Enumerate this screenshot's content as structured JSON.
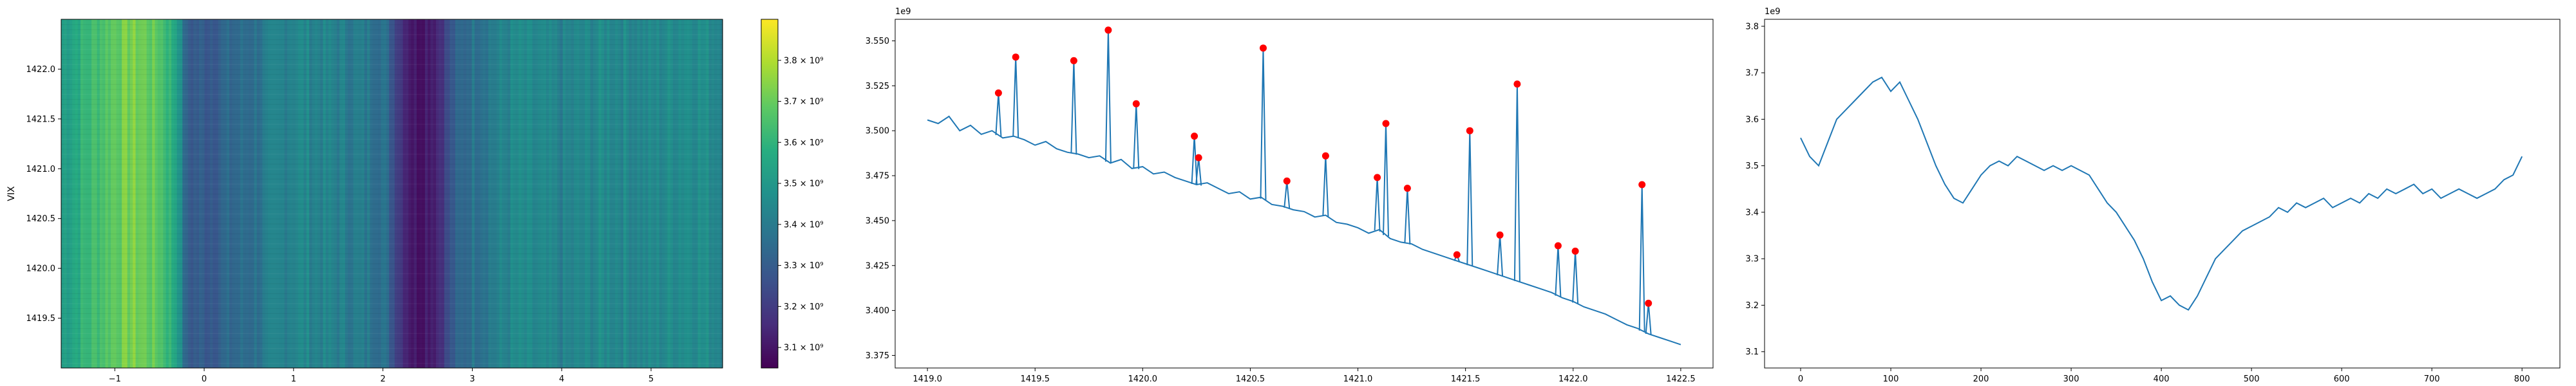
{
  "chart_data": [
    {
      "type": "heatmap",
      "ylabel": "VIX",
      "xlim": [
        -1.6,
        5.8
      ],
      "ylim": [
        1419.0,
        1422.5
      ],
      "xticks": [
        "−1",
        "0",
        "1",
        "2",
        "3",
        "4",
        "5"
      ],
      "yticks": [
        "1419.5",
        "1420.0",
        "1420.5",
        "1421.0",
        "1421.5",
        "1422.0"
      ],
      "colormap": "viridis",
      "colorbar": {
        "range": [
          3050000000.0,
          3900000000.0
        ],
        "ticks": [
          3.1,
          3.2,
          3.3,
          3.4,
          3.5,
          3.6,
          3.7,
          3.8
        ],
        "tick_labels": [
          "3.1 × 10⁹",
          "3.2 × 10⁹",
          "3.3 × 10⁹",
          "3.4 × 10⁹",
          "3.5 × 10⁹",
          "3.6 × 10⁹",
          "3.7 × 10⁹",
          "3.8 × 10⁹"
        ]
      },
      "column_profile": {
        "x": [
          -1.6,
          -1.3,
          -1.0,
          -0.8,
          -0.5,
          -0.3,
          -0.2,
          0.0,
          0.5,
          1.0,
          1.5,
          2.0,
          2.2,
          2.35,
          2.6,
          2.8,
          3.0,
          3.5,
          4.0,
          4.5,
          5.0,
          5.4,
          5.8
        ],
        "v": [
          3520000000.0,
          3620000000.0,
          3700000000.0,
          3730000000.0,
          3680000000.0,
          3550000000.0,
          3300000000.0,
          3300000000.0,
          3360000000.0,
          3450000000.0,
          3420000000.0,
          3380000000.0,
          3200000000.0,
          3100000000.0,
          3150000000.0,
          3300000000.0,
          3380000000.0,
          3450000000.0,
          3420000000.0,
          3460000000.0,
          3440000000.0,
          3480000000.0,
          3450000000.0
        ]
      }
    },
    {
      "type": "line",
      "offset_label": "1e9",
      "xlim": [
        1418.85,
        1422.65
      ],
      "ylim": [
        3368000000.0,
        3562000000.0
      ],
      "xticks": [
        "1419.0",
        "1419.5",
        "1420.0",
        "1420.5",
        "1421.0",
        "1421.5",
        "1422.0",
        "1422.5"
      ],
      "yticks": [
        "3.375",
        "3.400",
        "3.425",
        "3.450",
        "3.475",
        "3.500",
        "3.525",
        "3.550"
      ],
      "line_color": "#1f77b4",
      "marker_color": "#ff0000",
      "series": [
        {
          "x": [
            1419.0,
            1419.05,
            1419.1,
            1419.15,
            1419.2,
            1419.25,
            1419.3,
            1419.35,
            1419.4,
            1419.45,
            1419.5,
            1419.55,
            1419.6,
            1419.65,
            1419.7,
            1419.75,
            1419.8,
            1419.85,
            1419.9,
            1419.95,
            1420.0,
            1420.05,
            1420.1,
            1420.15,
            1420.2,
            1420.25,
            1420.3,
            1420.35,
            1420.4,
            1420.45,
            1420.5,
            1420.55,
            1420.6,
            1420.65,
            1420.7,
            1420.75,
            1420.8,
            1420.85,
            1420.9,
            1420.95,
            1421.0,
            1421.05,
            1421.1,
            1421.15,
            1421.2,
            1421.25,
            1421.3,
            1421.35,
            1421.4,
            1421.45,
            1421.5,
            1421.55,
            1421.6,
            1421.65,
            1421.7,
            1421.75,
            1421.8,
            1421.85,
            1421.9,
            1421.95,
            1422.0,
            1422.05,
            1422.1,
            1422.15,
            1422.2,
            1422.25,
            1422.3,
            1422.35,
            1422.4,
            1422.45,
            1422.5
          ],
          "y": [
            3506000000.0,
            3504000000.0,
            3508000000.0,
            3500000000.0,
            3503000000.0,
            3498000000.0,
            3500000000.0,
            3496000000.0,
            3497000000.0,
            3495000000.0,
            3492000000.0,
            3494000000.0,
            3490000000.0,
            3488000000.0,
            3487000000.0,
            3485000000.0,
            3486000000.0,
            3482000000.0,
            3484000000.0,
            3479000000.0,
            3480000000.0,
            3476000000.0,
            3477000000.0,
            3474000000.0,
            3472000000.0,
            3470000000.0,
            3471000000.0,
            3468000000.0,
            3465000000.0,
            3466000000.0,
            3462000000.0,
            3463000000.0,
            3459000000.0,
            3458000000.0,
            3456000000.0,
            3455000000.0,
            3452000000.0,
            3453000000.0,
            3449000000.0,
            3448000000.0,
            3446000000.0,
            3443000000.0,
            3445000000.0,
            3440000000.0,
            3438000000.0,
            3437000000.0,
            3434000000.0,
            3432000000.0,
            3430000000.0,
            3428000000.0,
            3426000000.0,
            3424000000.0,
            3422000000.0,
            3420000000.0,
            3418000000.0,
            3416000000.0,
            3414000000.0,
            3412000000.0,
            3410000000.0,
            3407000000.0,
            3405000000.0,
            3402000000.0,
            3400000000.0,
            3398000000.0,
            3395000000.0,
            3392000000.0,
            3390000000.0,
            3387000000.0,
            3385000000.0,
            3383000000.0,
            3381000000.0
          ]
        }
      ],
      "peaks": {
        "x": [
          1419.33,
          1419.41,
          1419.68,
          1419.84,
          1419.97,
          1420.24,
          1420.26,
          1420.56,
          1420.67,
          1420.85,
          1421.09,
          1421.13,
          1421.23,
          1421.46,
          1421.52,
          1421.66,
          1421.74,
          1421.93,
          1422.01,
          1422.32,
          1422.35
        ],
        "y": [
          3521000000.0,
          3541000000.0,
          3539000000.0,
          3556000000.0,
          3515000000.0,
          3497000000.0,
          3485000000.0,
          3546000000.0,
          3472000000.0,
          3486000000.0,
          3474000000.0,
          3504000000.0,
          3468000000.0,
          3431000000.0,
          3500000000.0,
          3442000000.0,
          3526000000.0,
          3436000000.0,
          3433000000.0,
          3470000000.0,
          3404000000.0
        ]
      }
    },
    {
      "type": "line",
      "offset_label": "1e9",
      "xlim": [
        -40,
        842
      ],
      "ylim": [
        3065000000.0,
        3815000000.0
      ],
      "xticks": [
        "0",
        "100",
        "200",
        "300",
        "400",
        "500",
        "600",
        "700",
        "800"
      ],
      "yticks": [
        "3.1",
        "3.2",
        "3.3",
        "3.4",
        "3.5",
        "3.6",
        "3.7",
        "3.8"
      ],
      "line_color": "#1f77b4",
      "series": [
        {
          "x": [
            0,
            10,
            20,
            30,
            40,
            50,
            60,
            70,
            80,
            90,
            100,
            110,
            120,
            130,
            140,
            150,
            160,
            170,
            180,
            190,
            200,
            210,
            220,
            230,
            240,
            250,
            260,
            270,
            280,
            290,
            300,
            310,
            320,
            330,
            340,
            350,
            360,
            370,
            380,
            390,
            400,
            410,
            420,
            430,
            440,
            450,
            460,
            470,
            480,
            490,
            500,
            510,
            520,
            530,
            540,
            550,
            560,
            570,
            580,
            590,
            600,
            610,
            620,
            630,
            640,
            650,
            660,
            670,
            680,
            690,
            700,
            710,
            720,
            730,
            740,
            750,
            760,
            770,
            780,
            790,
            800
          ],
          "y": [
            3560000000.0,
            3520000000.0,
            3500000000.0,
            3550000000.0,
            3600000000.0,
            3620000000.0,
            3640000000.0,
            3660000000.0,
            3680000000.0,
            3690000000.0,
            3660000000.0,
            3680000000.0,
            3640000000.0,
            3600000000.0,
            3550000000.0,
            3500000000.0,
            3460000000.0,
            3430000000.0,
            3420000000.0,
            3450000000.0,
            3480000000.0,
            3500000000.0,
            3510000000.0,
            3500000000.0,
            3520000000.0,
            3510000000.0,
            3500000000.0,
            3490000000.0,
            3500000000.0,
            3490000000.0,
            3500000000.0,
            3490000000.0,
            3480000000.0,
            3450000000.0,
            3420000000.0,
            3400000000.0,
            3370000000.0,
            3340000000.0,
            3300000000.0,
            3250000000.0,
            3210000000.0,
            3220000000.0,
            3200000000.0,
            3190000000.0,
            3220000000.0,
            3260000000.0,
            3300000000.0,
            3320000000.0,
            3340000000.0,
            3360000000.0,
            3370000000.0,
            3380000000.0,
            3390000000.0,
            3410000000.0,
            3400000000.0,
            3420000000.0,
            3410000000.0,
            3420000000.0,
            3430000000.0,
            3410000000.0,
            3420000000.0,
            3430000000.0,
            3420000000.0,
            3440000000.0,
            3430000000.0,
            3450000000.0,
            3440000000.0,
            3450000000.0,
            3460000000.0,
            3440000000.0,
            3450000000.0,
            3430000000.0,
            3440000000.0,
            3450000000.0,
            3440000000.0,
            3430000000.0,
            3440000000.0,
            3450000000.0,
            3470000000.0,
            3480000000.0,
            3520000000.0
          ]
        }
      ]
    }
  ]
}
